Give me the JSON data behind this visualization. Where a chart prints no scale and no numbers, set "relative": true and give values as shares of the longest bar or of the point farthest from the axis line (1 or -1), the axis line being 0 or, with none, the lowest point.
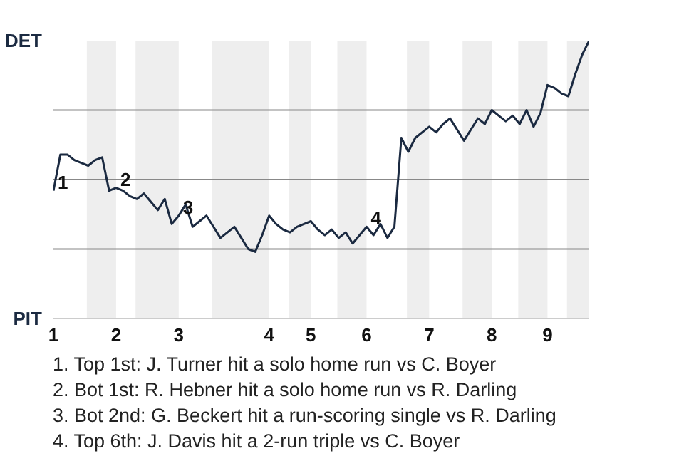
{
  "chart_data": {
    "type": "line",
    "relative": true,
    "grid": "y",
    "line_style": "solid",
    "marker": "none",
    "categories": [
      "1",
      null,
      null,
      null,
      null,
      null,
      null,
      null,
      null,
      "2",
      null,
      null,
      null,
      null,
      null,
      null,
      null,
      null,
      "3",
      null,
      null,
      null,
      null,
      null,
      null,
      null,
      null,
      null,
      null,
      null,
      null,
      "4",
      null,
      null,
      null,
      null,
      null,
      "5",
      null,
      null,
      null,
      null,
      null,
      null,
      null,
      "6",
      null,
      null,
      null,
      null,
      null,
      null,
      null,
      null,
      "7",
      null,
      null,
      null,
      null,
      null,
      null,
      null,
      null,
      "8",
      null,
      null,
      null,
      null,
      null,
      null,
      null,
      "9",
      null,
      null,
      null,
      null,
      null,
      null
    ],
    "series": [
      {
        "color": "#1b2a41",
        "values": [
          0.46,
          0.59,
          0.59,
          0.57,
          0.56,
          0.55,
          0.57,
          0.58,
          0.46,
          0.47,
          0.46,
          0.44,
          0.43,
          0.45,
          0.42,
          0.39,
          0.43,
          0.34,
          0.37,
          0.41,
          0.33,
          0.35,
          0.37,
          0.33,
          0.29,
          0.31,
          0.33,
          0.29,
          0.25,
          0.24,
          0.3,
          0.37,
          0.34,
          0.32,
          0.31,
          0.33,
          0.34,
          0.35,
          0.32,
          0.3,
          0.32,
          0.29,
          0.31,
          0.27,
          0.3,
          0.33,
          0.3,
          0.34,
          0.29,
          0.33,
          0.65,
          0.6,
          0.65,
          0.67,
          0.69,
          0.67,
          0.7,
          0.72,
          0.68,
          0.64,
          0.68,
          0.72,
          0.7,
          0.75,
          0.73,
          0.71,
          0.73,
          0.7,
          0.75,
          0.69,
          0.74,
          0.84,
          0.83,
          0.81,
          0.8,
          0.88,
          0.95,
          1.0
        ]
      }
    ],
    "annotations": [
      "DET",
      "PIT",
      {
        "text": "1",
        "x": "1",
        "y": 0.46
      },
      {
        "text": "2",
        "x": "2",
        "y": 0.47
      },
      {
        "text": "3",
        "x": "3",
        "y": 0.37
      },
      {
        "text": "4",
        "x": "6",
        "y": 0.33
      },
      "1. Top 1st: J. Turner hit a solo home run vs C. Boyer",
      "2. Bot 1st: R. Hebner hit a solo home run vs R. Darling",
      "3. Bot 2nd: G. Beckert hit a run-scoring single vs R. Darling",
      "4. Top 6th: J. Davis hit a 2-run triple vs C. Boyer"
    ]
  }
}
